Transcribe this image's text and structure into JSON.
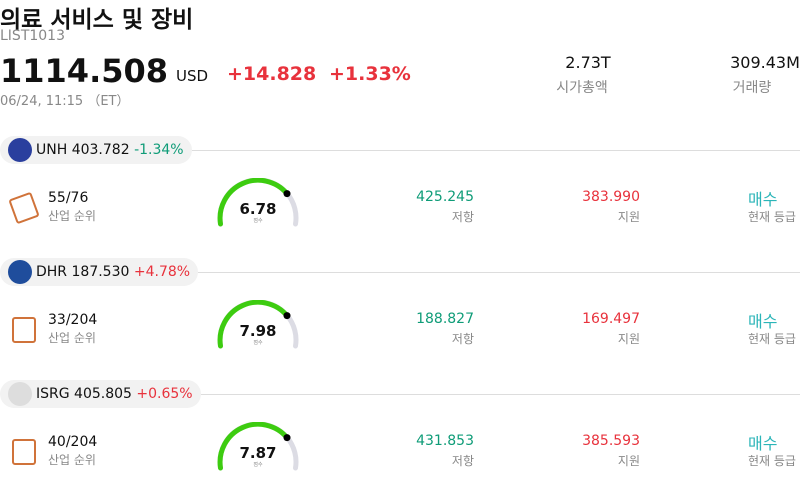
{
  "header": {
    "title": "의료 서비스 및 장비",
    "code": "LIST1013",
    "price": "1114.508",
    "currency": "USD",
    "change": "+14.828",
    "change_pct": "+1.33%",
    "date": "06/24, 11:15 （ET）",
    "market_cap": "2.73T",
    "market_cap_label": "시가총액",
    "volume": "309.43M",
    "volume_label": "거래량"
  },
  "stocks": [
    {
      "ticker": "UNH",
      "price": "403.782",
      "change_pct": "-1.34%",
      "rank": "55/76",
      "rank_label": "산업 순위",
      "score": "6.78",
      "score_label": "점수",
      "resistance": "425.245",
      "resistance_label": "저항",
      "support": "383.990",
      "support_label": "지원",
      "rating": "매수",
      "rating_label": "현재 등급"
    },
    {
      "ticker": "DHR",
      "price": "187.530",
      "change_pct": "+4.78%",
      "rank": "33/204",
      "rank_label": "산업 순위",
      "score": "7.98",
      "score_label": "점수",
      "resistance": "188.827",
      "resistance_label": "저항",
      "support": "169.497",
      "support_label": "지원",
      "rating": "매수",
      "rating_label": "현재 등급"
    },
    {
      "ticker": "ISRG",
      "price": "405.805",
      "change_pct": "+0.65%",
      "rank": "40/204",
      "rank_label": "산업 순위",
      "score": "7.87",
      "score_label": "점수",
      "resistance": "431.853",
      "resistance_label": "저항",
      "support": "385.593",
      "support_label": "지원",
      "rating": "매수",
      "rating_label": "현재 등급"
    }
  ]
}
